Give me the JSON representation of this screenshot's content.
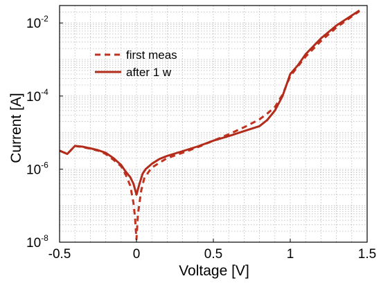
{
  "chart_data": {
    "type": "line",
    "title": "",
    "xlabel": "Voltage [V]",
    "ylabel": "Current [A]",
    "xlim": [
      -0.5,
      1.5
    ],
    "ylim": [
      1e-08,
      0.03
    ],
    "y_scale": "log",
    "grid": true,
    "legend_position": "upper-left",
    "x_ticks": [
      "-0.5",
      "0",
      "0.5",
      "1",
      "1.5"
    ],
    "y_ticks": [
      {
        "base": "10",
        "exp": "-8",
        "value": 1e-08
      },
      {
        "base": "10",
        "exp": "-6",
        "value": 1e-06
      },
      {
        "base": "10",
        "exp": "-4",
        "value": 0.0001
      },
      {
        "base": "10",
        "exp": "-2",
        "value": 0.01
      }
    ],
    "series": [
      {
        "name": "first meas",
        "style": "dashed",
        "color": "#c2331f",
        "x": [
          -0.5,
          -0.45,
          -0.4,
          -0.35,
          -0.3,
          -0.25,
          -0.2,
          -0.15,
          -0.1,
          -0.07,
          -0.04,
          -0.02,
          -0.01,
          0.0,
          0.01,
          0.03,
          0.05,
          0.08,
          0.1,
          0.15,
          0.2,
          0.3,
          0.4,
          0.5,
          0.6,
          0.7,
          0.8,
          0.85,
          0.9,
          0.95,
          1.0,
          1.05,
          1.1,
          1.2,
          1.3,
          1.4,
          1.45
        ],
        "y": [
          3.2e-06,
          2.6e-06,
          4.3e-06,
          4e-06,
          3.6e-06,
          3.2e-06,
          2.6e-06,
          1.8e-06,
          1.2e-06,
          7e-07,
          3.5e-07,
          1.2e-07,
          5e-08,
          1.2e-08,
          6e-08,
          2.5e-07,
          5.5e-07,
          8.5e-07,
          1.1e-06,
          1.5e-06,
          2e-06,
          2.8e-06,
          4e-06,
          6e-06,
          9e-06,
          1.4e-05,
          2.3e-05,
          3.3e-05,
          5e-05,
          0.00011,
          0.00035,
          0.00065,
          0.0012,
          0.0032,
          0.0075,
          0.015,
          0.021
        ]
      },
      {
        "name": "after 1 w",
        "style": "solid",
        "color": "#b22c1c",
        "x": [
          -0.5,
          -0.45,
          -0.4,
          -0.35,
          -0.3,
          -0.25,
          -0.2,
          -0.15,
          -0.1,
          -0.07,
          -0.04,
          -0.02,
          0.0,
          0.02,
          0.04,
          0.06,
          0.1,
          0.15,
          0.2,
          0.3,
          0.4,
          0.5,
          0.6,
          0.7,
          0.8,
          0.85,
          0.9,
          0.95,
          1.0,
          1.05,
          1.1,
          1.2,
          1.3,
          1.4,
          1.45
        ],
        "y": [
          3.2e-06,
          2.6e-06,
          4.3e-06,
          4.1e-06,
          3.7e-06,
          3.3e-06,
          2.8e-06,
          2e-06,
          1.3e-06,
          8.5e-07,
          6e-07,
          4e-07,
          2e-07,
          4e-07,
          7.5e-07,
          1e-06,
          1.4e-06,
          1.9e-06,
          2.3e-06,
          3.1e-06,
          4.2e-06,
          6e-06,
          8e-06,
          1.1e-05,
          1.5e-05,
          2.2e-05,
          4e-05,
          0.0001,
          0.0004,
          0.0007,
          0.0014,
          0.0038,
          0.0085,
          0.016,
          0.022
        ]
      }
    ]
  }
}
